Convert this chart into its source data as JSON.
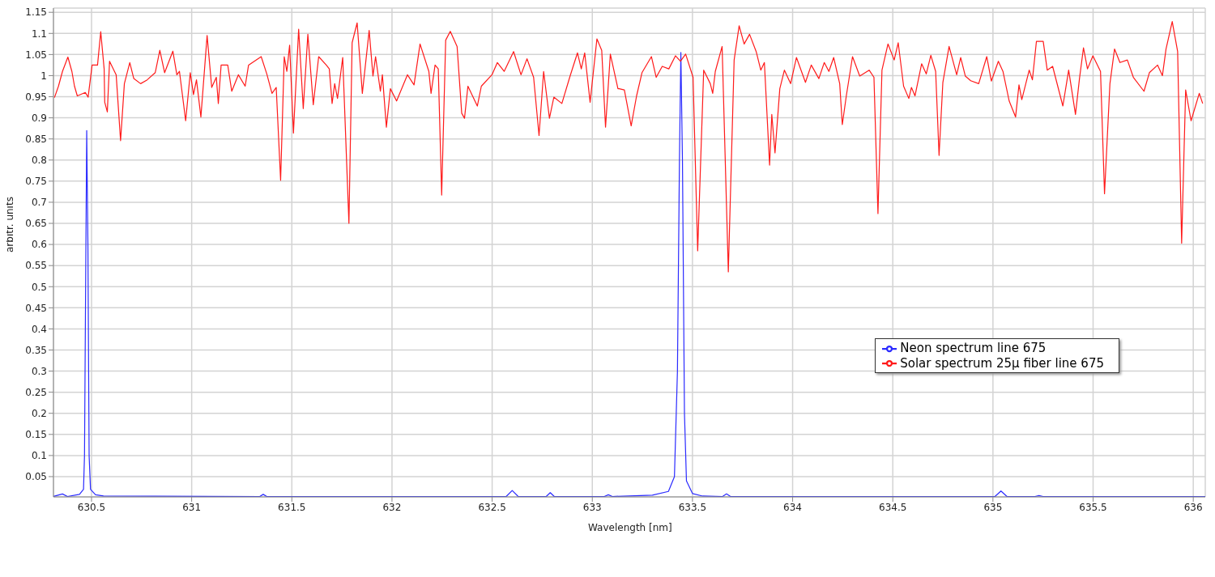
{
  "chart_data": {
    "type": "line",
    "xlabel": "Wavelength [nm]",
    "ylabel": "arbitr. units",
    "xlim": [
      630.31,
      636.06
    ],
    "xticks": [
      630.5,
      631,
      631.5,
      632,
      632.5,
      633,
      633.5,
      634,
      634.5,
      635,
      635.5,
      636
    ],
    "ylim": [
      0.002,
      1.16
    ],
    "yticks": [
      0.05,
      0.1,
      0.15,
      0.2,
      0.25,
      0.3,
      0.35,
      0.4,
      0.45,
      0.5,
      0.55,
      0.6,
      0.65,
      0.7,
      0.75,
      0.8,
      0.85,
      0.9,
      0.95,
      1,
      1.05,
      1.1,
      1.15
    ],
    "grid": true,
    "legend": "right",
    "marker": "none",
    "line_style": "solid",
    "series": [
      {
        "name": "Neon spectrum line 675",
        "color": "#2b2bff",
        "x": [
          630.31,
          630.355,
          630.38,
          630.44,
          630.46,
          630.465,
          630.472,
          630.476,
          630.482,
          630.488,
          630.495,
          630.52,
          630.56,
          631.34,
          631.357,
          631.375,
          632.57,
          632.6,
          632.63,
          632.77,
          632.79,
          632.81,
          633.06,
          633.08,
          633.1,
          633.3,
          633.38,
          633.41,
          633.425,
          633.435,
          633.442,
          633.45,
          633.46,
          633.47,
          633.5,
          633.55,
          633.65,
          633.67,
          633.69,
          635.01,
          635.04,
          635.07,
          635.21,
          635.23,
          635.25,
          636.06
        ],
        "values": [
          0.003,
          0.009,
          0.003,
          0.008,
          0.02,
          0.1,
          0.6,
          0.87,
          0.6,
          0.1,
          0.02,
          0.007,
          0.004,
          0.003,
          0.008,
          0.003,
          0.003,
          0.017,
          0.003,
          0.003,
          0.012,
          0.003,
          0.003,
          0.007,
          0.003,
          0.006,
          0.015,
          0.05,
          0.3,
          0.8,
          1.055,
          0.8,
          0.2,
          0.04,
          0.01,
          0.004,
          0.003,
          0.009,
          0.003,
          0.003,
          0.016,
          0.003,
          0.003,
          0.005,
          0.003,
          0.003
        ]
      },
      {
        "name": "Solar spectrum 25μ fiber line 675",
        "color": "#ff1a1a",
        "x": [
          630.315,
          630.335,
          630.355,
          630.382,
          630.402,
          630.415,
          630.429,
          630.469,
          630.483,
          630.503,
          630.53,
          630.546,
          630.563,
          630.566,
          630.579,
          630.59,
          630.623,
          630.645,
          630.664,
          630.691,
          630.711,
          630.745,
          630.778,
          630.818,
          630.841,
          630.865,
          630.906,
          630.926,
          630.939,
          630.97,
          630.993,
          631.009,
          631.024,
          631.046,
          631.077,
          631.1,
          631.123,
          631.133,
          631.147,
          631.18,
          631.2,
          631.233,
          631.267,
          631.284,
          631.347,
          631.375,
          631.401,
          631.422,
          631.444,
          631.462,
          631.475,
          631.489,
          631.508,
          631.534,
          631.557,
          631.58,
          631.607,
          631.634,
          631.672,
          631.687,
          631.701,
          631.714,
          631.728,
          631.754,
          631.785,
          631.801,
          631.826,
          631.852,
          631.886,
          631.905,
          631.918,
          631.942,
          631.952,
          631.972,
          631.992,
          632.023,
          632.077,
          632.11,
          632.14,
          632.184,
          632.195,
          632.215,
          632.231,
          632.248,
          632.268,
          632.291,
          632.325,
          632.348,
          632.362,
          632.379,
          632.426,
          632.446,
          632.499,
          632.526,
          632.56,
          632.607,
          632.644,
          632.674,
          632.707,
          632.734,
          632.757,
          632.786,
          632.808,
          632.848,
          632.889,
          632.926,
          632.945,
          632.962,
          632.989,
          633.023,
          633.047,
          633.066,
          633.09,
          633.128,
          633.134,
          633.16,
          633.194,
          633.221,
          633.248,
          633.295,
          633.319,
          633.349,
          633.382,
          633.415,
          633.44,
          633.466,
          633.503,
          633.526,
          633.556,
          633.589,
          633.601,
          633.614,
          633.648,
          633.679,
          633.708,
          633.733,
          633.758,
          633.785,
          633.818,
          633.841,
          633.859,
          633.885,
          633.896,
          633.912,
          633.936,
          633.959,
          633.99,
          634.019,
          634.064,
          634.093,
          634.131,
          634.158,
          634.181,
          634.205,
          634.235,
          634.248,
          634.268,
          634.299,
          634.335,
          634.382,
          634.406,
          634.426,
          634.446,
          634.476,
          634.507,
          634.527,
          634.554,
          634.58,
          634.593,
          634.611,
          634.644,
          634.667,
          634.69,
          634.714,
          634.731,
          634.75,
          634.781,
          634.819,
          634.839,
          634.862,
          634.889,
          634.929,
          634.969,
          634.992,
          635.027,
          635.05,
          635.081,
          635.113,
          635.13,
          635.144,
          635.181,
          635.197,
          635.217,
          635.251,
          635.271,
          635.298,
          635.349,
          635.378,
          635.412,
          635.432,
          635.452,
          635.472,
          635.499,
          635.537,
          635.557,
          635.584,
          635.607,
          635.634,
          635.671,
          635.701,
          635.754,
          635.781,
          635.822,
          635.846,
          635.864,
          635.895,
          635.922,
          635.942,
          635.962,
          635.989,
          636.03,
          636.047
        ],
        "values": [
          0.948,
          0.975,
          1.01,
          1.044,
          1.01,
          0.975,
          0.952,
          0.96,
          0.949,
          1.025,
          1.025,
          1.104,
          1.016,
          0.937,
          0.914,
          1.034,
          1.002,
          0.846,
          0.981,
          1.031,
          0.993,
          0.981,
          0.99,
          1.007,
          1.06,
          1.007,
          1.058,
          1.002,
          1.01,
          0.893,
          1.007,
          0.955,
          0.99,
          0.902,
          1.095,
          0.972,
          0.996,
          0.934,
          1.025,
          1.025,
          0.963,
          1.002,
          0.975,
          1.025,
          1.045,
          1.004,
          0.958,
          0.972,
          0.752,
          1.045,
          1.01,
          1.072,
          0.864,
          1.11,
          0.922,
          1.098,
          0.931,
          1.045,
          1.025,
          1.016,
          0.934,
          0.981,
          0.946,
          1.043,
          0.65,
          1.078,
          1.125,
          0.958,
          1.107,
          0.999,
          1.045,
          0.963,
          1.002,
          0.878,
          0.969,
          0.94,
          1.002,
          0.978,
          1.075,
          1.01,
          0.958,
          1.025,
          1.016,
          0.717,
          1.084,
          1.105,
          1.069,
          0.911,
          0.899,
          0.975,
          0.928,
          0.975,
          1.002,
          1.031,
          1.01,
          1.057,
          1.002,
          1.04,
          0.996,
          0.858,
          1.01,
          0.899,
          0.949,
          0.934,
          0.999,
          1.054,
          1.016,
          1.054,
          0.937,
          1.087,
          1.06,
          0.878,
          1.051,
          0.969,
          0.969,
          0.966,
          0.881,
          0.952,
          1.007,
          1.045,
          0.996,
          1.022,
          1.016,
          1.047,
          1.034,
          1.051,
          0.996,
          0.585,
          1.013,
          0.981,
          0.958,
          1.01,
          1.069,
          0.535,
          1.037,
          1.118,
          1.075,
          1.098,
          1.057,
          1.013,
          1.031,
          0.788,
          0.908,
          0.817,
          0.969,
          1.013,
          0.981,
          1.043,
          0.984,
          1.025,
          0.993,
          1.031,
          1.01,
          1.043,
          0.981,
          0.884,
          0.952,
          1.045,
          0.999,
          1.013,
          0.996,
          0.673,
          1.013,
          1.075,
          1.037,
          1.078,
          0.975,
          0.946,
          0.972,
          0.952,
          1.028,
          1.004,
          1.048,
          1.01,
          0.811,
          0.984,
          1.069,
          1.002,
          1.043,
          0.999,
          0.988,
          0.981,
          1.045,
          0.987,
          1.034,
          1.01,
          0.94,
          0.902,
          0.978,
          0.943,
          1.013,
          0.99,
          1.081,
          1.081,
          1.013,
          1.022,
          0.928,
          1.013,
          0.908,
          0.993,
          1.066,
          1.016,
          1.047,
          1.01,
          0.72,
          0.981,
          1.063,
          1.031,
          1.037,
          0.996,
          0.963,
          1.007,
          1.025,
          1.0,
          1.063,
          1.128,
          1.057,
          0.603,
          0.966,
          0.893,
          0.958,
          0.934
        ]
      }
    ]
  }
}
